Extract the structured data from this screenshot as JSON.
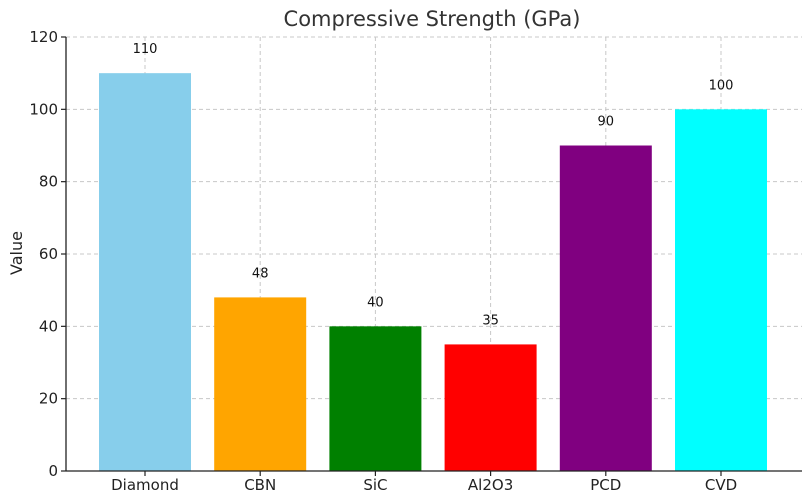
{
  "chart_data": {
    "type": "bar",
    "title": "Compressive Strength (GPa)",
    "xlabel": "",
    "ylabel": "Value",
    "categories": [
      "Diamond",
      "CBN",
      "SiC",
      "Al2O3",
      "PCD",
      "CVD"
    ],
    "values": [
      110,
      48,
      40,
      35,
      90,
      100
    ],
    "data_labels": [
      "110",
      "48",
      "40",
      "35",
      "90",
      "100"
    ],
    "colors": [
      "#87ceeb",
      "#ffa500",
      "#008000",
      "#ff0000",
      "#800080",
      "#00ffff"
    ],
    "ylim": [
      0,
      120
    ],
    "yticks": [
      0,
      20,
      40,
      60,
      80,
      100,
      120
    ],
    "ytick_labels": [
      "0",
      "20",
      "40",
      "60",
      "80",
      "100",
      "120"
    ],
    "grid": true,
    "legend": false
  }
}
